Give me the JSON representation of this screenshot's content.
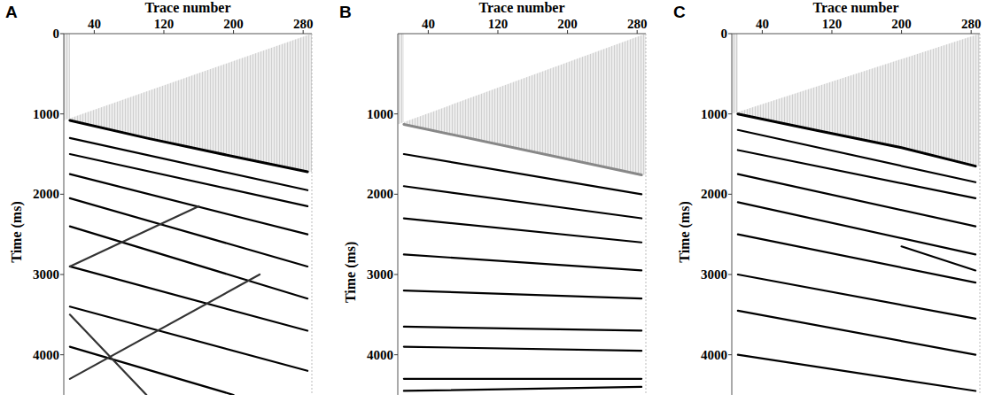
{
  "chart_data": [
    {
      "type": "line",
      "panel_label": "A",
      "xlabel": "Trace number",
      "ylabel": "Time (ms)",
      "xlim": [
        5,
        290
      ],
      "xticks": [
        40,
        120,
        200,
        280
      ],
      "ylim": [
        0,
        4500
      ],
      "yticks": [
        0,
        1000,
        2000,
        3000,
        4000
      ],
      "grid": false,
      "series": [
        {
          "x": [
            12,
            100,
            200,
            285
          ],
          "values": [
            1080,
            1300,
            1530,
            1720
          ],
          "color": "#000000"
        },
        {
          "x": [
            12,
            285
          ],
          "values": [
            1300,
            1950
          ],
          "color": "#000000"
        },
        {
          "x": [
            12,
            285
          ],
          "values": [
            1500,
            2150
          ],
          "color": "#000000"
        },
        {
          "x": [
            12,
            285
          ],
          "values": [
            1750,
            2500
          ],
          "color": "#000000"
        },
        {
          "x": [
            12,
            285
          ],
          "values": [
            2050,
            2900
          ],
          "color": "#000000"
        },
        {
          "x": [
            12,
            285
          ],
          "values": [
            2400,
            3300
          ],
          "color": "#000000"
        },
        {
          "x": [
            12,
            285
          ],
          "values": [
            2900,
            3700
          ],
          "color": "#000000"
        },
        {
          "x": [
            12,
            285
          ],
          "values": [
            3400,
            4200
          ],
          "color": "#000000"
        },
        {
          "x": [
            12,
            200
          ],
          "values": [
            3900,
            4500
          ],
          "color": "#000000"
        },
        {
          "x": [
            12,
            160
          ],
          "values": [
            2900,
            2150
          ],
          "color": "#333333"
        },
        {
          "x": [
            12,
            230
          ],
          "values": [
            4300,
            3000
          ],
          "color": "#333333"
        },
        {
          "x": [
            12,
            100
          ],
          "values": [
            3500,
            4500
          ],
          "color": "#333333"
        }
      ]
    },
    {
      "type": "line",
      "panel_label": "B",
      "xlabel": "Trace number",
      "ylabel": "Time (ms)",
      "xlim": [
        5,
        290
      ],
      "xticks": [
        40,
        120,
        200,
        280
      ],
      "ylim": [
        0,
        4500
      ],
      "yticks": [
        1000,
        2000,
        3000,
        4000
      ],
      "grid": false,
      "series": [
        {
          "x": [
            12,
            285
          ],
          "values": [
            1130,
            1760
          ],
          "color": "#888888"
        },
        {
          "x": [
            12,
            285
          ],
          "values": [
            1500,
            2000
          ],
          "color": "#000000"
        },
        {
          "x": [
            12,
            285
          ],
          "values": [
            1900,
            2300
          ],
          "color": "#000000"
        },
        {
          "x": [
            12,
            285
          ],
          "values": [
            2300,
            2600
          ],
          "color": "#000000"
        },
        {
          "x": [
            12,
            285
          ],
          "values": [
            2750,
            2950
          ],
          "color": "#000000"
        },
        {
          "x": [
            12,
            285
          ],
          "values": [
            3200,
            3300
          ],
          "color": "#000000"
        },
        {
          "x": [
            12,
            285
          ],
          "values": [
            3650,
            3700
          ],
          "color": "#000000"
        },
        {
          "x": [
            12,
            285
          ],
          "values": [
            3900,
            3950
          ],
          "color": "#000000"
        },
        {
          "x": [
            12,
            285
          ],
          "values": [
            4300,
            4300
          ],
          "color": "#000000"
        },
        {
          "x": [
            12,
            285
          ],
          "values": [
            4450,
            4400
          ],
          "color": "#000000"
        }
      ]
    },
    {
      "type": "line",
      "panel_label": "C",
      "xlabel": "Trace number",
      "ylabel": "Time (ms)",
      "xlim": [
        5,
        290
      ],
      "xticks": [
        40,
        120,
        200,
        280
      ],
      "ylim": [
        0,
        4500
      ],
      "yticks": [
        0,
        1000,
        2000,
        3000,
        4000
      ],
      "grid": false,
      "series": [
        {
          "x": [
            12,
            100,
            200,
            285
          ],
          "values": [
            1000,
            1200,
            1420,
            1650
          ],
          "color": "#000000"
        },
        {
          "x": [
            12,
            285
          ],
          "values": [
            1200,
            1850
          ],
          "color": "#000000"
        },
        {
          "x": [
            12,
            285
          ],
          "values": [
            1450,
            2050
          ],
          "color": "#000000"
        },
        {
          "x": [
            12,
            285
          ],
          "values": [
            1750,
            2400
          ],
          "color": "#000000"
        },
        {
          "x": [
            12,
            285
          ],
          "values": [
            2100,
            2750
          ],
          "color": "#000000"
        },
        {
          "x": [
            12,
            285
          ],
          "values": [
            2500,
            3100
          ],
          "color": "#000000"
        },
        {
          "x": [
            200,
            285
          ],
          "values": [
            2650,
            2950
          ],
          "color": "#000000"
        },
        {
          "x": [
            12,
            285
          ],
          "values": [
            3000,
            3550
          ],
          "color": "#000000"
        },
        {
          "x": [
            12,
            285
          ],
          "values": [
            3450,
            4000
          ],
          "color": "#000000"
        },
        {
          "x": [
            12,
            285
          ],
          "values": [
            4000,
            4450
          ],
          "color": "#000000"
        }
      ]
    }
  ]
}
